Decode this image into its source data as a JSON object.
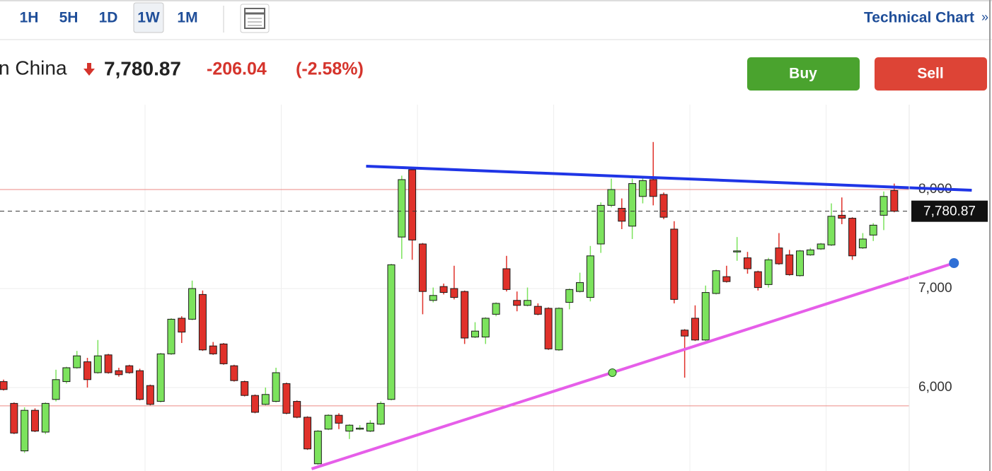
{
  "toolbar": {
    "intervals": [
      "1H",
      "5H",
      "1D",
      "1W",
      "1M"
    ],
    "selected_index": 3,
    "link": "Technical Chart",
    "link_arrow": "»"
  },
  "header": {
    "name": "n China",
    "price": "7,780.87",
    "change": "-206.04",
    "change_pct": "(-2.58%)"
  },
  "buttons": {
    "buy": "Buy",
    "sell": "Sell"
  },
  "chart_data": {
    "type": "candlestick",
    "open": [
      6060,
      5840,
      5360,
      5770,
      5550,
      5880,
      6060,
      6200,
      6260,
      6150,
      6330,
      6170,
      6220,
      6170,
      6020,
      5860,
      6340,
      6700,
      6690,
      6940,
      6420,
      6440,
      6220,
      6060,
      5920,
      5830,
      5860,
      6040,
      5860,
      5700,
      5230,
      5580,
      5720,
      5560,
      5580,
      5560,
      5630,
      5880,
      7520,
      8200,
      7450,
      6880,
      7020,
      7000,
      6970,
      6510,
      6510,
      6740,
      7200,
      6880,
      6830,
      6820,
      6800,
      6380,
      6860,
      6970,
      6910,
      7450,
      7840,
      7810,
      7630,
      7930,
      8100,
      7950,
      7600,
      6580,
      6700,
      6480,
      6950,
      7120,
      7370,
      7310,
      7170,
      7040,
      7410,
      7340,
      7130,
      7340,
      7400,
      7440,
      7740,
      7710,
      7410,
      7540,
      7740,
      7990
    ],
    "high": [
      6080,
      5850,
      5800,
      5790,
      5850,
      6180,
      6210,
      6370,
      6300,
      6480,
      6340,
      6200,
      6230,
      6190,
      6030,
      6350,
      6700,
      6720,
      7080,
      6980,
      6460,
      6450,
      6230,
      6070,
      5930,
      6000,
      6200,
      6050,
      5870,
      5710,
      5570,
      5730,
      5740,
      5630,
      5620,
      5670,
      5860,
      7250,
      8140,
      8220,
      7460,
      7010,
      7050,
      7230,
      6980,
      6660,
      6710,
      6860,
      7330,
      6970,
      7010,
      6850,
      6810,
      6810,
      7000,
      7160,
      7430,
      7870,
      8110,
      7910,
      8110,
      8120,
      8480,
      7970,
      7680,
      6590,
      6830,
      7030,
      7190,
      7230,
      7520,
      7370,
      7180,
      7310,
      7560,
      7390,
      7390,
      7410,
      7460,
      7860,
      7920,
      7720,
      7560,
      7660,
      7980,
      8060
    ],
    "low": [
      5970,
      5530,
      5340,
      5550,
      5530,
      5860,
      6040,
      6190,
      6000,
      6140,
      6140,
      6110,
      6140,
      5870,
      5820,
      5850,
      6330,
      6450,
      6680,
      6370,
      6330,
      6230,
      6060,
      5910,
      5740,
      5820,
      5850,
      5730,
      5690,
      5370,
      5220,
      5570,
      5580,
      5480,
      5570,
      5550,
      5620,
      5870,
      7300,
      7290,
      6740,
      6860,
      6940,
      6890,
      6440,
      6500,
      6440,
      6720,
      6970,
      6770,
      6820,
      6730,
      6380,
      6370,
      6790,
      6960,
      6870,
      7360,
      7820,
      7600,
      7500,
      7860,
      7840,
      7700,
      6850,
      6100,
      6470,
      6470,
      6940,
      7060,
      7280,
      7150,
      6980,
      7010,
      7240,
      7130,
      7120,
      7330,
      7390,
      7430,
      7650,
      7290,
      7400,
      7480,
      7590,
      7770
    ],
    "close": [
      5980,
      5540,
      5770,
      5560,
      5840,
      6080,
      6200,
      6320,
      6080,
      6320,
      6150,
      6130,
      6150,
      5880,
      5830,
      6340,
      6690,
      6560,
      7000,
      6380,
      6340,
      6240,
      6070,
      5920,
      5750,
      5930,
      6150,
      5740,
      5700,
      5380,
      5560,
      5720,
      5640,
      5620,
      5590,
      5640,
      5840,
      7240,
      8100,
      7490,
      6970,
      6930,
      6960,
      6910,
      6500,
      6570,
      6700,
      6850,
      6990,
      6830,
      6880,
      6740,
      6390,
      6800,
      6990,
      7060,
      7330,
      7840,
      8000,
      7680,
      8060,
      8090,
      7930,
      7720,
      6890,
      6520,
      6480,
      6960,
      7180,
      7070,
      7380,
      7200,
      7010,
      7290,
      7250,
      7140,
      7380,
      7390,
      7450,
      7730,
      7710,
      7330,
      7500,
      7640,
      7930,
      7780.87
    ],
    "up_color": "#7ce35d",
    "down_color": "#e0312a",
    "xlim": [
      -0.34,
      86.43
    ],
    "ylim": [
      5157,
      8857
    ],
    "yticks": [
      {
        "value": 6000,
        "label": "6,000"
      },
      {
        "value": 7000,
        "label": "7,000"
      },
      {
        "value": 8000,
        "label": "8,000"
      }
    ],
    "grid": true,
    "hlines": [
      8000,
      5815
    ],
    "hline_color": "#ec8a84",
    "last_price": 7780.87,
    "last_price_label": "7,780.87",
    "trendlines": [
      {
        "color": "#1f35e6",
        "x": [
          34.6,
          92.4
        ],
        "y": [
          8236,
          7993
        ],
        "anchors": []
      },
      {
        "color": "#e65ee9",
        "x": [
          29.4,
          90.7
        ],
        "y": [
          5179,
          7257
        ],
        "anchors": [
          {
            "x": 58.1,
            "y": 6150,
            "color": "#7ce35d"
          },
          {
            "x": 90.7,
            "y": 7257,
            "color": "#2f6fd6"
          }
        ]
      }
    ]
  }
}
